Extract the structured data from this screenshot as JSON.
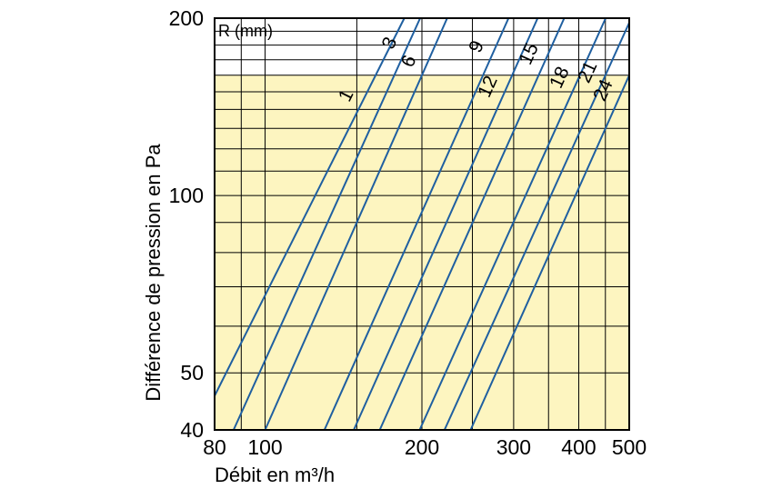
{
  "chart_data": {
    "type": "line",
    "xlabel": "Débit en m³/h",
    "ylabel": "Différence de pression en Pa",
    "xscale": "log",
    "yscale": "log",
    "xlim": [
      80,
      500
    ],
    "ylim": [
      40,
      200
    ],
    "xticks": [
      80,
      100,
      200,
      300,
      400,
      500
    ],
    "yticks": [
      40,
      50,
      100,
      200
    ],
    "grid": true,
    "shaded_region": {
      "y_max": 160,
      "color": "#fdf5c0"
    },
    "legend_title": "R (mm)",
    "line_color": "#1f5fa0",
    "series": [
      {
        "name": "1",
        "points": [
          [
            80,
            45.7
          ],
          [
            163,
            160
          ]
        ]
      },
      {
        "name": "3",
        "points": [
          [
            87,
            40
          ],
          [
            177,
            160
          ]
        ]
      },
      {
        "name": "6",
        "points": [
          [
            100,
            40
          ],
          [
            200,
            160
          ]
        ]
      },
      {
        "name": "9",
        "points": [
          [
            130,
            40
          ],
          [
            262,
            160
          ]
        ]
      },
      {
        "name": "12",
        "points": [
          [
            148,
            40
          ],
          [
            298,
            160
          ]
        ]
      },
      {
        "name": "15",
        "points": [
          [
            166,
            40
          ],
          [
            335,
            160
          ]
        ]
      },
      {
        "name": "18",
        "points": [
          [
            198,
            40
          ],
          [
            402,
            160
          ]
        ]
      },
      {
        "name": "21",
        "points": [
          [
            221,
            40
          ],
          [
            450,
            160
          ]
        ]
      },
      {
        "name": "24",
        "points": [
          [
            248,
            40
          ],
          [
            500,
            160
          ]
        ]
      }
    ]
  }
}
